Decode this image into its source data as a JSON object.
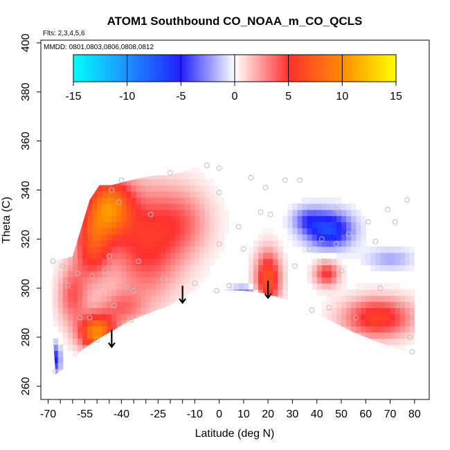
{
  "chart_data": {
    "type": "heatmap",
    "title": "ATOM1 Southbound CO_NOAA_m_CO_QCLS",
    "flights_note": "Flts: 2,3,4,5,6",
    "mmdd_note": "MMDD: 0801,0803,0806,0808,0812",
    "xlabel": "Latitude (deg N)",
    "ylabel": "Theta (C)",
    "xlim": [
      -70,
      80
    ],
    "ylim": [
      260,
      400
    ],
    "x_ticks": [
      -70,
      -55,
      -40,
      -25,
      -10,
      0,
      10,
      20,
      30,
      40,
      50,
      60,
      70,
      80
    ],
    "x_tick_labels": [
      "-70",
      "-55",
      "-40",
      "-25",
      "-10",
      "0",
      "10",
      "20",
      "30",
      "40",
      "50",
      "60",
      "70",
      "80"
    ],
    "y_ticks": [
      260,
      280,
      300,
      320,
      340,
      360,
      380,
      400
    ],
    "y_tick_labels": [
      "260",
      "280",
      "300",
      "320",
      "340",
      "360",
      "380",
      "400"
    ],
    "colorbar": {
      "range": [
        -15,
        15
      ],
      "ticks": [
        -15,
        -10,
        -5,
        0,
        5,
        10,
        15
      ],
      "tick_labels": [
        "-15",
        "-10",
        "-5",
        "0",
        "5",
        "10",
        "15"
      ],
      "stops": [
        {
          "v": -15,
          "color": "#00ffff"
        },
        {
          "v": -10,
          "color": "#1e90ff"
        },
        {
          "v": -5,
          "color": "#2020ff"
        },
        {
          "v": 0,
          "color": "#ffffff"
        },
        {
          "v": 5,
          "color": "#ff3030"
        },
        {
          "v": 10,
          "color": "#ff8c00"
        },
        {
          "v": 15,
          "color": "#ffff00"
        }
      ]
    },
    "envelope_top": [
      [
        -68,
        311
      ],
      [
        -60,
        313
      ],
      [
        -53,
        336
      ],
      [
        -49,
        342
      ],
      [
        -44,
        342
      ],
      [
        -40,
        343
      ],
      [
        -32,
        345
      ],
      [
        -25,
        346
      ],
      [
        -20,
        346
      ],
      [
        -10,
        349
      ],
      [
        -3,
        350
      ],
      [
        5,
        349
      ],
      [
        12,
        348
      ],
      [
        20,
        346
      ],
      [
        30,
        344
      ],
      [
        40,
        342
      ],
      [
        50,
        340
      ],
      [
        60,
        338
      ],
      [
        70,
        332
      ],
      [
        76,
        326
      ],
      [
        80,
        320
      ]
    ],
    "envelope_bottom": [
      [
        80,
        273
      ],
      [
        74,
        275
      ],
      [
        65,
        278
      ],
      [
        55,
        282
      ],
      [
        45,
        287
      ],
      [
        35,
        292
      ],
      [
        25,
        296
      ],
      [
        18,
        298
      ],
      [
        10,
        299
      ],
      [
        0,
        299
      ],
      [
        -8,
        300
      ],
      [
        -14,
        297
      ],
      [
        -20,
        293
      ],
      [
        -28,
        290
      ],
      [
        -36,
        287
      ],
      [
        -43,
        283
      ],
      [
        -50,
        279
      ],
      [
        -56,
        275
      ],
      [
        -62,
        268
      ],
      [
        -67,
        265
      ],
      [
        -68,
        280
      ],
      [
        -69,
        300
      ]
    ],
    "anomaly_features": [
      {
        "lat": -45,
        "theta": 333,
        "value": 9,
        "lat_radius": 9,
        "theta_radius": 12
      },
      {
        "lat": -52,
        "theta": 318,
        "value": 6,
        "lat_radius": 7,
        "theta_radius": 14
      },
      {
        "lat": -30,
        "theta": 318,
        "value": 5,
        "lat_radius": 14,
        "theta_radius": 22
      },
      {
        "lat": -15,
        "theta": 327,
        "value": 3,
        "lat_radius": 12,
        "theta_radius": 14
      },
      {
        "lat": -50,
        "theta": 282,
        "value": 10,
        "lat_radius": 7,
        "theta_radius": 7
      },
      {
        "lat": -60,
        "theta": 297,
        "value": 4,
        "lat_radius": 6,
        "theta_radius": 12
      },
      {
        "lat": -40,
        "theta": 292,
        "value": 3,
        "lat_radius": 9,
        "theta_radius": 7
      },
      {
        "lat": 20,
        "theta": 304,
        "value": 7,
        "lat_radius": 5,
        "theta_radius": 11
      },
      {
        "lat": 44,
        "theta": 306,
        "value": 5,
        "lat_radius": 5,
        "theta_radius": 5
      },
      {
        "lat": 65,
        "theta": 288,
        "value": 6,
        "lat_radius": 14,
        "theta_radius": 8
      },
      {
        "lat": 45,
        "theta": 324,
        "value": -7,
        "lat_radius": 9,
        "theta_radius": 7
      },
      {
        "lat": 36,
        "theta": 328,
        "value": -3,
        "lat_radius": 6,
        "theta_radius": 5
      },
      {
        "lat": 70,
        "theta": 312,
        "value": -2,
        "lat_radius": 9,
        "theta_radius": 4
      },
      {
        "lat": -67,
        "theta": 271,
        "value": -5,
        "lat_radius": 2,
        "theta_radius": 6
      },
      {
        "lat": 10,
        "theta": 299,
        "value": -5,
        "lat_radius": 5,
        "theta_radius": 1.5
      }
    ],
    "sample_points": [
      [
        -68,
        311
      ],
      [
        -64,
        309
      ],
      [
        -62,
        301
      ],
      [
        -58,
        306
      ],
      [
        -57,
        288
      ],
      [
        -53,
        288
      ],
      [
        -52,
        305
      ],
      [
        -50,
        279
      ],
      [
        -49,
        301
      ],
      [
        -47,
        307
      ],
      [
        -45,
        313
      ],
      [
        -44,
        340
      ],
      [
        -43,
        293
      ],
      [
        -41,
        335
      ],
      [
        -40,
        344
      ],
      [
        -38,
        300
      ],
      [
        -36,
        287
      ],
      [
        -35,
        299
      ],
      [
        -33,
        311
      ],
      [
        -28,
        330
      ],
      [
        -23,
        304
      ],
      [
        -20,
        347
      ],
      [
        -10,
        302
      ],
      [
        -5,
        350
      ],
      [
        -1,
        299
      ],
      [
        0,
        349
      ],
      [
        0,
        339
      ],
      [
        0,
        318
      ],
      [
        4,
        301
      ],
      [
        8,
        325
      ],
      [
        10,
        316
      ],
      [
        13,
        345
      ],
      [
        17,
        331
      ],
      [
        19,
        341
      ],
      [
        21,
        330
      ],
      [
        27,
        344
      ],
      [
        31,
        309
      ],
      [
        33,
        344
      ],
      [
        37,
        316
      ],
      [
        38,
        291
      ],
      [
        42,
        320
      ],
      [
        43,
        311
      ],
      [
        45,
        292
      ],
      [
        48,
        332
      ],
      [
        48,
        318
      ],
      [
        50,
        307
      ],
      [
        53,
        322
      ],
      [
        56,
        288
      ],
      [
        61,
        327
      ],
      [
        64,
        319
      ],
      [
        66,
        300
      ],
      [
        69,
        332
      ],
      [
        72,
        327
      ],
      [
        74,
        293
      ],
      [
        75,
        313
      ],
      [
        77,
        336
      ],
      [
        78,
        280
      ],
      [
        79,
        288
      ],
      [
        79,
        274
      ],
      [
        -67,
        266
      ]
    ],
    "arrows": [
      {
        "lat": -44,
        "theta_start": 283,
        "theta_end": 276
      },
      {
        "lat": -15,
        "theta_start": 301,
        "theta_end": 294
      },
      {
        "lat": 20,
        "theta_start": 303,
        "theta_end": 296
      }
    ],
    "grid": false
  }
}
